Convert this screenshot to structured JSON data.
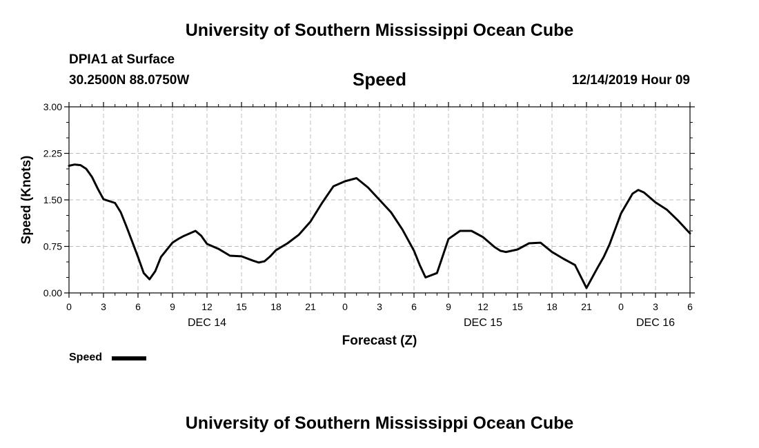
{
  "header": {
    "title": "University of Southern Mississippi Ocean Cube",
    "station": "DPIA1 at Surface",
    "coords": "30.2500N 88.0750W",
    "variable": "Speed",
    "datetime": "12/14/2019 Hour 09"
  },
  "footer": {
    "title": "University of Southern Mississippi Ocean Cube"
  },
  "legend": {
    "label": "Speed"
  },
  "chart_data": {
    "type": "line",
    "title": "Speed",
    "xlabel": "Forecast (Z)",
    "ylabel": "Speed (Knots)",
    "xlim": [
      0,
      54
    ],
    "ylim": [
      0,
      3
    ],
    "grid": true,
    "line_color": "#000000",
    "y_ticks": [
      "0.00",
      "0.75",
      "1.50",
      "2.25",
      "3.00"
    ],
    "x_tick_hours": [
      0,
      3,
      6,
      9,
      12,
      15,
      18,
      21,
      24,
      27,
      30,
      33,
      36,
      39,
      42,
      45,
      48,
      51,
      54
    ],
    "x_tick_labels": [
      "0",
      "3",
      "6",
      "9",
      "12",
      "15",
      "18",
      "21",
      "0",
      "3",
      "6",
      "9",
      "12",
      "15",
      "18",
      "21",
      "0",
      "3",
      "6"
    ],
    "day_labels": [
      {
        "hour": 12,
        "label": "DEC 14"
      },
      {
        "hour": 36,
        "label": "DEC 15"
      },
      {
        "hour": 51,
        "label": "DEC 16"
      }
    ],
    "series": [
      {
        "name": "Speed",
        "x": [
          0,
          0.5,
          1,
          1.5,
          2,
          2.5,
          3,
          4,
          4.5,
          5,
          6,
          6.5,
          7,
          7.5,
          8,
          9,
          9.5,
          10,
          11,
          11.5,
          12,
          13,
          14,
          15,
          16,
          16.5,
          17,
          17.5,
          18,
          19,
          20,
          21,
          22,
          23,
          24,
          25,
          26,
          27,
          28,
          29,
          30,
          30.5,
          31,
          32,
          33,
          34,
          35,
          36,
          37,
          37.5,
          38,
          39,
          40,
          41,
          42,
          43,
          44,
          45,
          46,
          46.5,
          47,
          48,
          49,
          49.5,
          50,
          51,
          52,
          53,
          54
        ],
        "values": [
          2.05,
          2.07,
          2.06,
          2.0,
          1.87,
          1.68,
          1.51,
          1.45,
          1.3,
          1.07,
          0.58,
          0.32,
          0.22,
          0.35,
          0.58,
          0.81,
          0.87,
          0.92,
          1.0,
          0.92,
          0.79,
          0.71,
          0.6,
          0.59,
          0.52,
          0.49,
          0.51,
          0.59,
          0.69,
          0.8,
          0.94,
          1.15,
          1.45,
          1.72,
          1.8,
          1.85,
          1.7,
          1.5,
          1.3,
          1.02,
          0.68,
          0.45,
          0.25,
          0.32,
          0.87,
          1.0,
          1.0,
          0.9,
          0.74,
          0.68,
          0.66,
          0.7,
          0.8,
          0.81,
          0.66,
          0.55,
          0.45,
          0.08,
          0.42,
          0.58,
          0.78,
          1.28,
          1.6,
          1.66,
          1.62,
          1.46,
          1.34,
          1.16,
          0.96
        ]
      }
    ]
  }
}
